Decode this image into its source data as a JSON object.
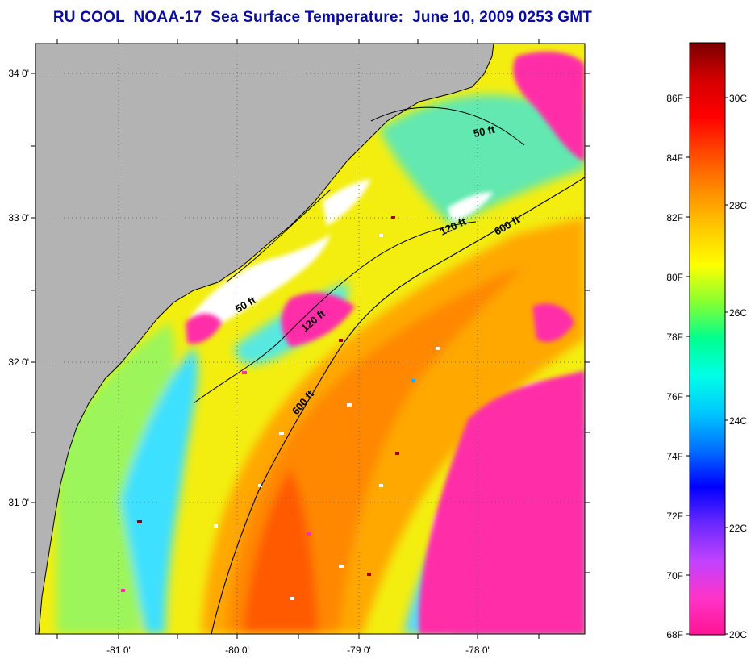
{
  "title": "RU COOL  NOAA-17  Sea Surface Temperature:  June 10, 2009 0253 GMT",
  "map": {
    "lat_labels": [
      "34 0'",
      "33 0'",
      "32 0'",
      "31 0'"
    ],
    "lon_labels": [
      "-81 0'",
      "-80 0'",
      "-79 0'",
      "-78 0'"
    ],
    "isobath_labels": [
      "50 ft",
      "120 ft",
      "600 ft",
      "50 ft",
      "120 ft",
      "600 ft"
    ],
    "colors": {
      "land": "#b3b3b3",
      "cloud_white": "#ffffff",
      "cloud_magenta": "#ff2aa8",
      "shelf_yellow": "#f5f000",
      "slope_orange": "#ff8a00",
      "gulfstream_red": "#ff4a00",
      "coastal_cyan": "#32ccff",
      "cold_blue": "#1e46dc"
    }
  },
  "colorbar": {
    "f_labels": [
      "86F",
      "84F",
      "82F",
      "80F",
      "78F",
      "76F",
      "74F",
      "72F",
      "70F",
      "68F"
    ],
    "c_labels": [
      "30C",
      "28C",
      "26C",
      "24C",
      "22C",
      "20C"
    ],
    "gradient": [
      "#ff1493",
      "#ff33c9",
      "#c042ff",
      "#6a28ff",
      "#0000ff",
      "#0070ff",
      "#00c8ff",
      "#00ffe6",
      "#00ff90",
      "#88ff30",
      "#ffff00",
      "#ffc800",
      "#ff8c00",
      "#ff4a00",
      "#ff0000",
      "#d40000",
      "#7a0000"
    ]
  }
}
